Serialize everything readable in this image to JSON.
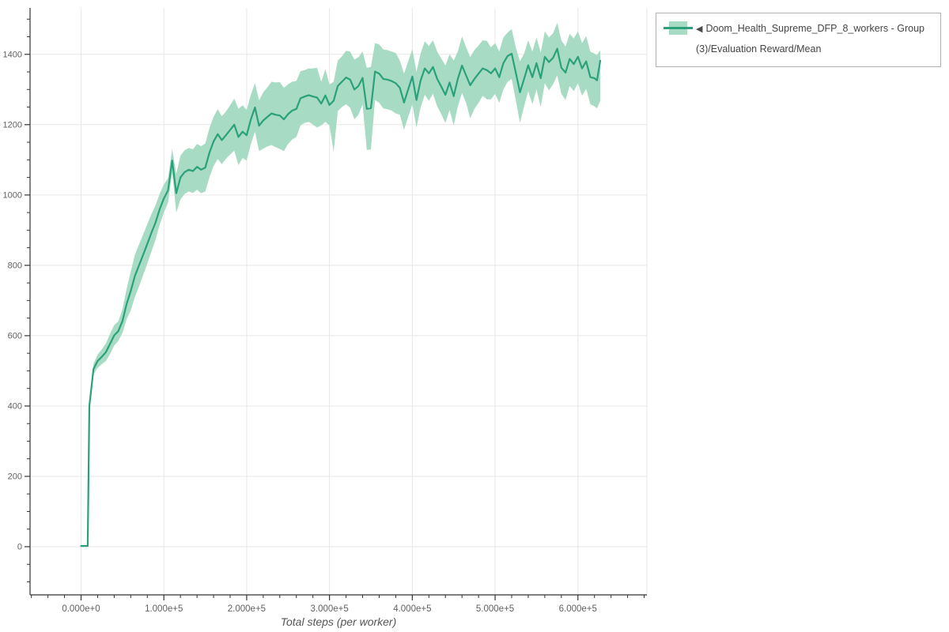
{
  "legend": {
    "collapse_icon": "◀"
  },
  "colors": {
    "background": "#ffffff",
    "axis": "#333333",
    "grid": "#e7e7e7",
    "tick_text": "#616161",
    "axis_title_text": "#555555",
    "legend_border": "#b1b1b1",
    "legend_text": "#454545"
  },
  "chart_data": {
    "type": "line",
    "title": "",
    "xlabel": "Total steps (per worker)",
    "ylabel": "",
    "grid": true,
    "legend_position": "outside-top-right",
    "x_axis": {
      "min": -61600,
      "max": 683300,
      "major_tick_values": [
        0,
        100000,
        200000,
        300000,
        400000,
        500000,
        600000
      ],
      "major_tick_labels": [
        "0.000e+0",
        "1.000e+5",
        "2.000e+5",
        "3.000e+5",
        "4.000e+5",
        "5.000e+5",
        "6.000e+5"
      ],
      "minor_tick_step": 20000
    },
    "y_axis": {
      "min": -137,
      "max": 1532,
      "major_tick_values": [
        0,
        200,
        400,
        600,
        800,
        1000,
        1200,
        1400
      ],
      "major_tick_labels": [
        "0",
        "200",
        "400",
        "600",
        "800",
        "1000",
        "1200",
        "1400"
      ],
      "minor_tick_step": 50
    },
    "series": [
      {
        "name": "Doom_Health_Supreme_DFP_8_workers - Group(3)/Evaluation Reward/Mean",
        "line_color": "#2aa17b",
        "band_color": "#a7dbc4",
        "steps": [
          0,
          8000,
          10000,
          15000,
          20000,
          25000,
          30000,
          35000,
          40000,
          45000,
          50000,
          55000,
          60000,
          65000,
          70000,
          75000,
          80000,
          85000,
          90000,
          95000,
          100000,
          105000,
          110000,
          115000,
          120000,
          125000,
          130000,
          135000,
          140000,
          145000,
          150000,
          155000,
          160000,
          165000,
          170000,
          175000,
          180000,
          185000,
          190000,
          195000,
          200000,
          205000,
          210000,
          215000,
          220000,
          225000,
          230000,
          235000,
          240000,
          245000,
          250000,
          255000,
          260000,
          265000,
          270000,
          275000,
          280000,
          285000,
          290000,
          295000,
          300000,
          305000,
          310000,
          315000,
          320000,
          325000,
          330000,
          335000,
          340000,
          345000,
          350000,
          355000,
          360000,
          365000,
          370000,
          375000,
          380000,
          385000,
          390000,
          395000,
          400000,
          405000,
          410000,
          415000,
          420000,
          425000,
          430000,
          435000,
          440000,
          445000,
          450000,
          455000,
          460000,
          465000,
          470000,
          475000,
          480000,
          485000,
          490000,
          495000,
          500000,
          505000,
          510000,
          515000,
          520000,
          525000,
          530000,
          535000,
          540000,
          545000,
          550000,
          555000,
          560000,
          565000,
          570000,
          575000,
          580000,
          585000,
          590000,
          595000,
          600000,
          605000,
          610000,
          615000,
          620000,
          623000,
          627000
        ],
        "mean": [
          2,
          2,
          400,
          505,
          528,
          540,
          553,
          577,
          601,
          613,
          642,
          690,
          727,
          770,
          800,
          830,
          861,
          893,
          922,
          960,
          990,
          1013,
          1098,
          1005,
          1050,
          1065,
          1072,
          1068,
          1080,
          1072,
          1078,
          1120,
          1152,
          1173,
          1156,
          1170,
          1185,
          1200,
          1165,
          1180,
          1170,
          1215,
          1249,
          1197,
          1212,
          1222,
          1232,
          1228,
          1226,
          1215,
          1230,
          1240,
          1245,
          1275,
          1280,
          1284,
          1280,
          1277,
          1260,
          1283,
          1256,
          1268,
          1310,
          1322,
          1334,
          1328,
          1300,
          1310,
          1333,
          1245,
          1247,
          1351,
          1345,
          1330,
          1328,
          1324,
          1318,
          1305,
          1263,
          1300,
          1337,
          1270,
          1325,
          1360,
          1346,
          1364,
          1330,
          1308,
          1285,
          1320,
          1281,
          1330,
          1368,
          1340,
          1312,
          1330,
          1345,
          1360,
          1355,
          1346,
          1360,
          1335,
          1375,
          1395,
          1402,
          1348,
          1292,
          1330,
          1369,
          1335,
          1375,
          1332,
          1393,
          1378,
          1390,
          1416,
          1362,
          1348,
          1387,
          1372,
          1393,
          1360,
          1380,
          1335,
          1332,
          1326,
          1382
        ],
        "lo": [
          1,
          1,
          390,
          490,
          508,
          519,
          528,
          548,
          572,
          585,
          608,
          647,
          672,
          710,
          740,
          772,
          805,
          840,
          873,
          916,
          950,
          978,
          1065,
          950,
          988,
          1003,
          1010,
          1006,
          1015,
          1005,
          1010,
          1050,
          1082,
          1102,
          1088,
          1103,
          1115,
          1126,
          1085,
          1105,
          1098,
          1145,
          1180,
          1125,
          1132,
          1138,
          1142,
          1136,
          1131,
          1125,
          1145,
          1158,
          1165,
          1198,
          1205,
          1208,
          1200,
          1192,
          1198,
          1208,
          1198,
          1122,
          1238,
          1250,
          1258,
          1248,
          1215,
          1228,
          1258,
          1128,
          1130,
          1270,
          1262,
          1246,
          1244,
          1240,
          1232,
          1228,
          1185,
          1222,
          1258,
          1192,
          1248,
          1285,
          1268,
          1288,
          1252,
          1230,
          1205,
          1242,
          1198,
          1252,
          1290,
          1262,
          1218,
          1245,
          1262,
          1282,
          1272,
          1272,
          1288,
          1262,
          1300,
          1322,
          1330,
          1270,
          1205,
          1252,
          1295,
          1258,
          1300,
          1250,
          1318,
          1298,
          1315,
          1340,
          1288,
          1270,
          1310,
          1295,
          1318,
          1282,
          1302,
          1258,
          1252,
          1246,
          1268
        ],
        "hi": [
          3,
          3,
          410,
          520,
          546,
          561,
          578,
          606,
          630,
          641,
          676,
          733,
          782,
          830,
          860,
          888,
          917,
          946,
          971,
          1004,
          1030,
          1048,
          1131,
          1060,
          1112,
          1127,
          1134,
          1130,
          1145,
          1139,
          1146,
          1190,
          1222,
          1244,
          1224,
          1237,
          1255,
          1274,
          1245,
          1255,
          1242,
          1285,
          1318,
          1269,
          1292,
          1306,
          1322,
          1320,
          1321,
          1305,
          1315,
          1322,
          1325,
          1352,
          1355,
          1360,
          1360,
          1362,
          1322,
          1358,
          1314,
          1322,
          1382,
          1394,
          1410,
          1408,
          1385,
          1392,
          1408,
          1362,
          1364,
          1432,
          1428,
          1414,
          1412,
          1408,
          1404,
          1382,
          1345,
          1380,
          1415,
          1350,
          1402,
          1437,
          1424,
          1440,
          1408,
          1388,
          1368,
          1400,
          1382,
          1408,
          1451,
          1420,
          1392,
          1412,
          1425,
          1440,
          1438,
          1420,
          1432,
          1408,
          1448,
          1462,
          1472,
          1420,
          1380,
          1402,
          1440,
          1408,
          1448,
          1405,
          1465,
          1448,
          1460,
          1490,
          1440,
          1422,
          1458,
          1445,
          1465,
          1432,
          1452,
          1408,
          1402,
          1398,
          1412
        ]
      }
    ]
  }
}
